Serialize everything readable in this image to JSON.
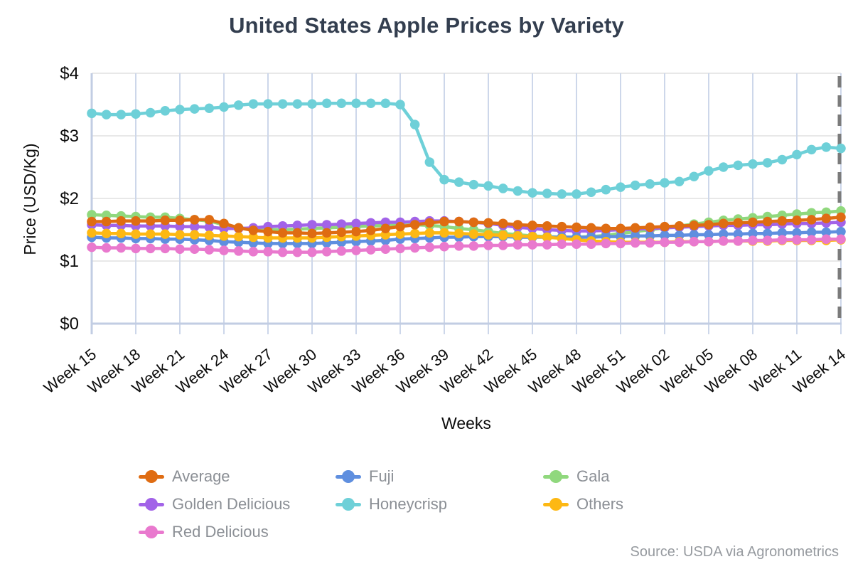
{
  "title": "United States Apple Prices by Variety",
  "source": "Source: USDA via Agronometrics",
  "chart_data": {
    "type": "line",
    "title": "United States Apple Prices by Variety",
    "xlabel": "Weeks",
    "ylabel": "Price (USD/Kg)",
    "ylim": [
      0,
      4
    ],
    "y_ticks": [
      {
        "value": 0,
        "label": "$0"
      },
      {
        "value": 1,
        "label": "$1"
      },
      {
        "value": 2,
        "label": "$2"
      },
      {
        "value": 3,
        "label": "$3"
      },
      {
        "value": 4,
        "label": "$4"
      }
    ],
    "x_tick_every": 3,
    "grid": "horizontal and vertical gridlines on",
    "legend_position": "bottom",
    "end_reference_line": {
      "at_category": "Week 14",
      "style": "dashed",
      "color": "#7b7b7b"
    },
    "categories": [
      "Week 15",
      "Week 16",
      "Week 17",
      "Week 18",
      "Week 19",
      "Week 20",
      "Week 21",
      "Week 22",
      "Week 23",
      "Week 24",
      "Week 25",
      "Week 26",
      "Week 27",
      "Week 28",
      "Week 29",
      "Week 30",
      "Week 31",
      "Week 32",
      "Week 33",
      "Week 34",
      "Week 35",
      "Week 36",
      "Week 37",
      "Week 38",
      "Week 39",
      "Week 40",
      "Week 41",
      "Week 42",
      "Week 43",
      "Week 44",
      "Week 45",
      "Week 46",
      "Week 47",
      "Week 48",
      "Week 49",
      "Week 50",
      "Week 51",
      "Week 52",
      "Week 01",
      "Week 02",
      "Week 03",
      "Week 04",
      "Week 05",
      "Week 06",
      "Week 07",
      "Week 08",
      "Week 09",
      "Week 10",
      "Week 11",
      "Week 12",
      "Week 13",
      "Week 14"
    ],
    "series": [
      {
        "name": "Average",
        "color": "#df6c12",
        "values": [
          1.63,
          1.63,
          1.64,
          1.64,
          1.64,
          1.65,
          1.65,
          1.66,
          1.66,
          1.6,
          1.53,
          1.49,
          1.47,
          1.45,
          1.45,
          1.44,
          1.45,
          1.46,
          1.47,
          1.49,
          1.52,
          1.55,
          1.58,
          1.61,
          1.63,
          1.63,
          1.62,
          1.61,
          1.6,
          1.58,
          1.57,
          1.56,
          1.55,
          1.54,
          1.53,
          1.52,
          1.52,
          1.53,
          1.54,
          1.55,
          1.56,
          1.57,
          1.58,
          1.6,
          1.61,
          1.62,
          1.63,
          1.64,
          1.65,
          1.66,
          1.68,
          1.7
        ]
      },
      {
        "name": "Fuji",
        "color": "#5f8fdf",
        "values": [
          1.38,
          1.37,
          1.37,
          1.36,
          1.36,
          1.35,
          1.35,
          1.34,
          1.33,
          1.31,
          1.3,
          1.29,
          1.28,
          1.28,
          1.28,
          1.28,
          1.29,
          1.3,
          1.31,
          1.32,
          1.33,
          1.35,
          1.36,
          1.37,
          1.38,
          1.38,
          1.39,
          1.39,
          1.39,
          1.38,
          1.38,
          1.38,
          1.38,
          1.38,
          1.38,
          1.39,
          1.39,
          1.4,
          1.4,
          1.41,
          1.41,
          1.42,
          1.42,
          1.43,
          1.43,
          1.44,
          1.44,
          1.45,
          1.45,
          1.46,
          1.46,
          1.47
        ]
      },
      {
        "name": "Gala",
        "color": "#90d87d",
        "values": [
          1.74,
          1.73,
          1.72,
          1.71,
          1.7,
          1.7,
          1.68,
          1.66,
          1.64,
          1.58,
          1.53,
          1.51,
          1.5,
          1.5,
          1.51,
          1.52,
          1.53,
          1.54,
          1.55,
          1.56,
          1.57,
          1.57,
          1.58,
          1.57,
          1.55,
          1.52,
          1.5,
          1.47,
          1.44,
          1.42,
          1.4,
          1.39,
          1.38,
          1.38,
          1.39,
          1.41,
          1.44,
          1.47,
          1.5,
          1.53,
          1.56,
          1.59,
          1.62,
          1.65,
          1.67,
          1.69,
          1.71,
          1.73,
          1.75,
          1.77,
          1.78,
          1.8
        ]
      },
      {
        "name": "Golden Delicious",
        "color": "#a263e8",
        "values": [
          1.58,
          1.57,
          1.57,
          1.56,
          1.56,
          1.56,
          1.55,
          1.55,
          1.54,
          1.52,
          1.52,
          1.53,
          1.55,
          1.56,
          1.57,
          1.58,
          1.58,
          1.59,
          1.6,
          1.61,
          1.62,
          1.62,
          1.63,
          1.64,
          1.64,
          1.63,
          1.62,
          1.6,
          1.57,
          1.54,
          1.52,
          1.5,
          1.49,
          1.48,
          1.48,
          1.49,
          1.5,
          1.51,
          1.52,
          1.53,
          1.54,
          1.55,
          1.56,
          1.57,
          1.57,
          1.58,
          1.58,
          1.59,
          1.6,
          1.6,
          1.61,
          1.62
        ]
      },
      {
        "name": "Honeycrisp",
        "color": "#6ed0d8",
        "values": [
          3.36,
          3.34,
          3.34,
          3.35,
          3.37,
          3.4,
          3.42,
          3.43,
          3.44,
          3.46,
          3.49,
          3.51,
          3.51,
          3.51,
          3.51,
          3.51,
          3.52,
          3.52,
          3.52,
          3.52,
          3.52,
          3.5,
          3.18,
          2.58,
          2.3,
          2.26,
          2.22,
          2.2,
          2.16,
          2.12,
          2.09,
          2.08,
          2.07,
          2.07,
          2.1,
          2.14,
          2.18,
          2.21,
          2.23,
          2.25,
          2.27,
          2.35,
          2.44,
          2.5,
          2.53,
          2.55,
          2.57,
          2.62,
          2.7,
          2.78,
          2.82,
          2.8
        ]
      },
      {
        "name": "Others",
        "color": "#fdb813",
        "values": [
          1.45,
          1.44,
          1.44,
          1.43,
          1.43,
          1.43,
          1.42,
          1.42,
          1.41,
          1.4,
          1.39,
          1.38,
          1.37,
          1.37,
          1.37,
          1.37,
          1.38,
          1.39,
          1.4,
          1.41,
          1.42,
          1.43,
          1.44,
          1.45,
          1.45,
          1.44,
          1.43,
          1.42,
          1.41,
          1.4,
          1.39,
          1.38,
          1.36,
          1.34,
          1.32,
          1.31,
          1.3,
          1.3,
          1.3,
          1.3,
          1.31,
          1.31,
          1.31,
          1.32,
          1.32,
          1.32,
          1.32,
          1.33,
          1.33,
          1.33,
          1.33,
          1.34
        ]
      },
      {
        "name": "Red Delicious",
        "color": "#e979ce",
        "values": [
          1.22,
          1.21,
          1.21,
          1.2,
          1.2,
          1.2,
          1.19,
          1.19,
          1.18,
          1.17,
          1.16,
          1.15,
          1.15,
          1.14,
          1.14,
          1.14,
          1.15,
          1.16,
          1.17,
          1.18,
          1.19,
          1.2,
          1.21,
          1.22,
          1.23,
          1.24,
          1.24,
          1.25,
          1.25,
          1.26,
          1.26,
          1.26,
          1.27,
          1.27,
          1.27,
          1.28,
          1.28,
          1.29,
          1.29,
          1.3,
          1.3,
          1.31,
          1.31,
          1.32,
          1.32,
          1.33,
          1.33,
          1.34,
          1.34,
          1.34,
          1.35,
          1.35
        ]
      }
    ]
  }
}
